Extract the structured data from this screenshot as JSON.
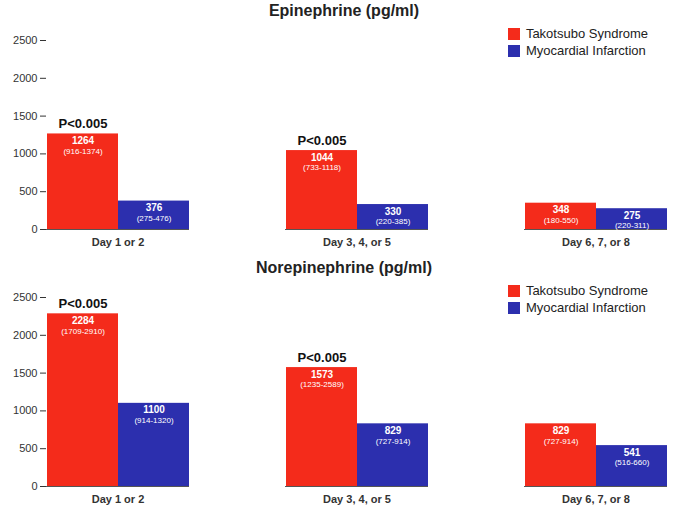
{
  "chart_data": [
    {
      "type": "bar",
      "title": "Epinephrine (pg/ml)",
      "categories": [
        "Day 1 or 2",
        "Day 3, 4, or 5",
        "Day 6, 7, or 8"
      ],
      "series": [
        {
          "name": "Takotsubo Syndrome",
          "color": "#f42b1b",
          "values": [
            1264,
            1044,
            348
          ],
          "range_labels": [
            "(916-1374)",
            "(733-1118)",
            "(180-550)"
          ]
        },
        {
          "name": "Myocardial Infarction",
          "color": "#2c2fae",
          "values": [
            376,
            330,
            275
          ],
          "range_labels": [
            "(275-476)",
            "(220-385)",
            "(220-311)"
          ]
        }
      ],
      "annotations": [
        {
          "category": "Day 1 or 2",
          "text": "P<0.005"
        },
        {
          "category": "Day 3, 4, or 5",
          "text": "P<0.005"
        }
      ],
      "ylim": [
        0,
        2500
      ],
      "yticks": [
        0,
        500,
        1000,
        1500,
        2000,
        2500
      ],
      "grid": false,
      "legend": "top-right",
      "data_labels": true
    },
    {
      "type": "bar",
      "title": "Norepinephrine (pg/ml)",
      "categories": [
        "Day 1 or 2",
        "Day 3, 4, or 5",
        "Day 6, 7, or 8"
      ],
      "series": [
        {
          "name": "Takotsubo Syndrome",
          "color": "#f42b1b",
          "values": [
            2284,
            1573,
            829
          ],
          "range_labels": [
            "(1709-2910)",
            "(1235-2589)",
            "(727-914)"
          ]
        },
        {
          "name": "Myocardial Infarction",
          "color": "#2c2fae",
          "values": [
            1100,
            829,
            541
          ],
          "range_labels": [
            "(914-1320)",
            "(727-914)",
            "(516-660)"
          ]
        }
      ],
      "annotations": [
        {
          "category": "Day 1 or 2",
          "text": "P<0.005"
        },
        {
          "category": "Day 3, 4, or 5",
          "text": "P<0.005"
        }
      ],
      "ylim": [
        0,
        2500
      ],
      "yticks": [
        0,
        500,
        1000,
        1500,
        2000,
        2500
      ],
      "grid": false,
      "legend": "top-right",
      "data_labels": true
    }
  ]
}
